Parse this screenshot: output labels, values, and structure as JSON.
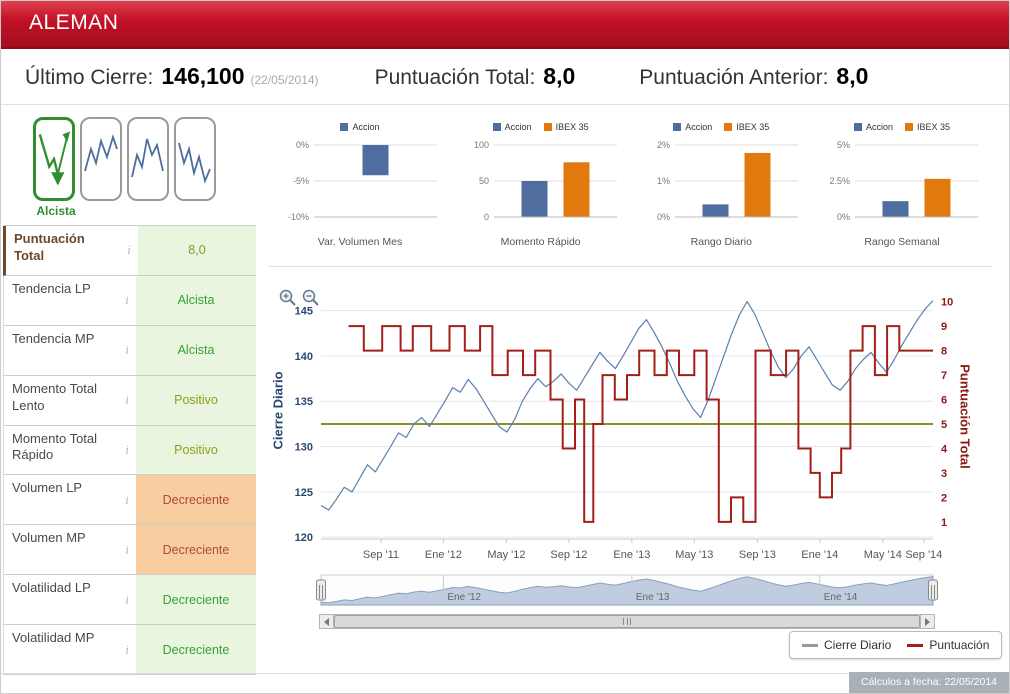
{
  "header": {
    "title": "ALEMAN",
    "accent_color": "#c41227"
  },
  "summary": {
    "last_close_label": "Último Cierre:",
    "last_close_value": "146,100",
    "last_close_date": "(22/05/2014)",
    "total_score_label": "Puntuación Total:",
    "total_score_value": "8,0",
    "prev_score_label": "Puntuación Anterior:",
    "prev_score_value": "8,0"
  },
  "trend": {
    "selected_label": "Alcista",
    "icons": [
      "trend-bullish-icon",
      "trend-zigzag-up-icon",
      "trend-peak-icon",
      "trend-zigzag-down-icon"
    ]
  },
  "states": {
    "score": {
      "text": "#7fa11c",
      "bg": "#eaf5e0"
    },
    "green": {
      "text": "#35a135",
      "bg": "#eaf5e0"
    },
    "olive": {
      "text": "#8fa018",
      "bg": "#eaf5e0"
    },
    "orange": {
      "text": "#b24b2f",
      "bg": "#f8cda0"
    }
  },
  "indicators": {
    "rows": [
      {
        "label": "Puntuación Total",
        "value": "8,0",
        "state": "score",
        "emphasis": true
      },
      {
        "label": "Tendencia LP",
        "value": "Alcista",
        "state": "green"
      },
      {
        "label": "Tendencia MP",
        "value": "Alcista",
        "state": "green"
      },
      {
        "label": "Momento Total Lento",
        "value": "Positivo",
        "state": "olive"
      },
      {
        "label": "Momento Total Rápido",
        "value": "Positivo",
        "state": "olive"
      },
      {
        "label": "Volumen LP",
        "value": "Decreciente",
        "state": "orange"
      },
      {
        "label": "Volumen MP",
        "value": "Decreciente",
        "state": "orange"
      },
      {
        "label": "Volatilidad LP",
        "value": "Decreciente",
        "state": "green"
      },
      {
        "label": "Volatilidad MP",
        "value": "Decreciente",
        "state": "green"
      }
    ]
  },
  "chart_data": [
    {
      "type": "bar",
      "title": "Var. Volumen Mes",
      "legend": [
        {
          "name": "Accion",
          "color": "#4f6d9f"
        }
      ],
      "ymin": -10,
      "ymax": 0,
      "yticks": [
        {
          "v": 0,
          "label": "0%"
        },
        {
          "v": -5,
          "label": "-5%"
        },
        {
          "v": -10,
          "label": "-10%"
        }
      ],
      "bars": [
        {
          "name": "Accion",
          "value": -4.2,
          "color": "#4f6d9f"
        }
      ]
    },
    {
      "type": "bar",
      "title": "Momento Rápido",
      "legend": [
        {
          "name": "Accion",
          "color": "#4f6d9f"
        },
        {
          "name": "IBEX 35",
          "color": "#e2790f"
        }
      ],
      "ymin": 0,
      "ymax": 100,
      "yticks": [
        {
          "v": 100,
          "label": "100"
        },
        {
          "v": 50,
          "label": "50"
        },
        {
          "v": 0,
          "label": "0"
        }
      ],
      "bars": [
        {
          "name": "Accion",
          "value": 50,
          "color": "#4f6d9f"
        },
        {
          "name": "IBEX 35",
          "value": 76,
          "color": "#e2790f"
        }
      ]
    },
    {
      "type": "bar",
      "title": "Rango Diario",
      "legend": [
        {
          "name": "Accion",
          "color": "#4f6d9f"
        },
        {
          "name": "IBEX 35",
          "color": "#e2790f"
        }
      ],
      "ymin": 0,
      "ymax": 2,
      "yticks": [
        {
          "v": 2,
          "label": "2%"
        },
        {
          "v": 1,
          "label": "1%"
        },
        {
          "v": 0,
          "label": "0%"
        }
      ],
      "bars": [
        {
          "name": "Accion",
          "value": 0.35,
          "color": "#4f6d9f"
        },
        {
          "name": "IBEX 35",
          "value": 1.78,
          "color": "#e2790f"
        }
      ]
    },
    {
      "type": "bar",
      "title": "Rango Semanal",
      "legend": [
        {
          "name": "Accion",
          "color": "#4f6d9f"
        },
        {
          "name": "IBEX 35",
          "color": "#e2790f"
        }
      ],
      "ymin": 0,
      "ymax": 5,
      "yticks": [
        {
          "v": 5,
          "label": "5%"
        },
        {
          "v": 2.5,
          "label": "2.5%"
        },
        {
          "v": 0,
          "label": "0%"
        }
      ],
      "bars": [
        {
          "name": "Accion",
          "value": 1.1,
          "color": "#4f6d9f"
        },
        {
          "name": "IBEX 35",
          "value": 2.65,
          "color": "#e2790f"
        }
      ]
    },
    {
      "type": "line",
      "y_left": {
        "label": "Cierre Diario",
        "min": 119.8,
        "max": 147.6,
        "ticks": [
          120,
          125,
          130,
          135,
          140,
          145
        ],
        "color": "#2c4770"
      },
      "y_right": {
        "label": "Puntuación Total",
        "min": 0.3,
        "max": 10.6,
        "ticks": [
          1,
          2,
          3,
          4,
          5,
          6,
          7,
          8,
          9,
          10
        ],
        "threshold": 5,
        "color": "#8b1a10",
        "threshold_color": "#8f8f2a"
      },
      "x_ticks": [
        {
          "f": 0.098,
          "label": "Sep '11"
        },
        {
          "f": 0.2,
          "label": "Ene '12"
        },
        {
          "f": 0.303,
          "label": "May '12"
        },
        {
          "f": 0.405,
          "label": "Sep '12"
        },
        {
          "f": 0.508,
          "label": "Ene '13"
        },
        {
          "f": 0.61,
          "label": "May '13"
        },
        {
          "f": 0.713,
          "label": "Sep '13"
        },
        {
          "f": 0.815,
          "label": "Ene '14"
        },
        {
          "f": 0.918,
          "label": "May '14"
        },
        {
          "f": 0.985,
          "label": "Sep '14"
        }
      ],
      "series": [
        {
          "name": "Cierre Diario",
          "color": "#5b7fad",
          "values": [
            123.5,
            123.0,
            124.2,
            125.5,
            125.0,
            126.5,
            128.0,
            127.2,
            128.6,
            130.0,
            131.5,
            131.0,
            132.5,
            133.2,
            132.2,
            133.6,
            135.0,
            136.5,
            136.0,
            137.4,
            136.4,
            135.0,
            133.6,
            132.2,
            131.6,
            133.0,
            135.0,
            136.4,
            137.5,
            136.6,
            137.2,
            138.0,
            137.0,
            136.2,
            137.6,
            139.0,
            140.4,
            139.4,
            138.6,
            140.0,
            141.5,
            143.0,
            144.0,
            142.6,
            141.0,
            139.2,
            137.2,
            135.6,
            134.2,
            133.2,
            135.2,
            137.6,
            140.0,
            142.4,
            144.5,
            146.0,
            144.6,
            142.6,
            140.6,
            138.8,
            137.6,
            138.6,
            140.0,
            141.0,
            139.6,
            138.2,
            136.8,
            136.2,
            137.2,
            138.6,
            139.6,
            140.4,
            139.2,
            138.2,
            139.6,
            141.2,
            142.6,
            144.0,
            145.2,
            146.1
          ]
        },
        {
          "name": "Puntuación",
          "color": "#a02018",
          "step_points": [
            [
              0.045,
              9
            ],
            [
              0.07,
              8
            ],
            [
              0.1,
              9
            ],
            [
              0.13,
              8
            ],
            [
              0.15,
              9
            ],
            [
              0.18,
              8
            ],
            [
              0.21,
              9
            ],
            [
              0.235,
              8
            ],
            [
              0.26,
              9
            ],
            [
              0.28,
              7
            ],
            [
              0.305,
              8
            ],
            [
              0.33,
              7
            ],
            [
              0.35,
              8
            ],
            [
              0.375,
              6
            ],
            [
              0.395,
              4
            ],
            [
              0.415,
              6
            ],
            [
              0.43,
              1
            ],
            [
              0.445,
              5
            ],
            [
              0.46,
              7
            ],
            [
              0.48,
              6
            ],
            [
              0.5,
              7
            ],
            [
              0.52,
              8
            ],
            [
              0.545,
              7
            ],
            [
              0.565,
              8
            ],
            [
              0.585,
              7
            ],
            [
              0.61,
              8
            ],
            [
              0.63,
              6
            ],
            [
              0.65,
              1
            ],
            [
              0.67,
              2
            ],
            [
              0.69,
              1
            ],
            [
              0.71,
              8
            ],
            [
              0.735,
              7
            ],
            [
              0.76,
              8
            ],
            [
              0.78,
              4
            ],
            [
              0.8,
              3
            ],
            [
              0.815,
              2
            ],
            [
              0.835,
              3
            ],
            [
              0.85,
              4
            ],
            [
              0.865,
              8
            ],
            [
              0.885,
              9
            ],
            [
              0.905,
              7
            ],
            [
              0.925,
              9
            ],
            [
              0.945,
              8
            ],
            [
              1.0,
              8
            ]
          ]
        }
      ],
      "navigator": {
        "labels": [
          {
            "f": 0.2,
            "label": "Ene '12"
          },
          {
            "f": 0.508,
            "label": "Ene '13"
          },
          {
            "f": 0.815,
            "label": "Ene '14"
          }
        ]
      }
    }
  ],
  "chart_legend_box": {
    "items": [
      {
        "label": "Cierre Diario",
        "color": "#999999"
      },
      {
        "label": "Puntuación",
        "color": "#a02018"
      }
    ]
  },
  "footer": {
    "text": "Cálculos a fecha: 22/05/2014"
  }
}
